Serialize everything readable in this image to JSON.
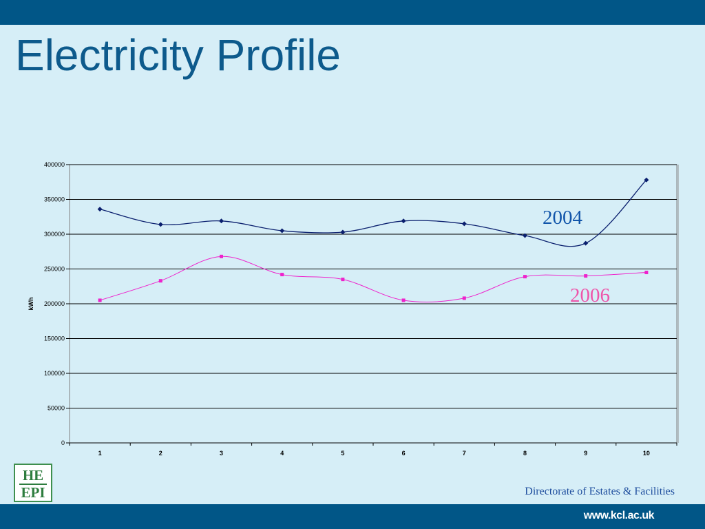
{
  "slide": {
    "title": "Electricity Profile",
    "footer": "Directorate of Estates & Facilities",
    "url": "www.kcl.ac.uk",
    "logo": {
      "line1": "HE",
      "line2": "EPI"
    }
  },
  "colors": {
    "bar": "#015687",
    "background": "#d6eef7",
    "series_2004": "#0a1f6e",
    "series_2006": "#ee22cc",
    "label_2004": "#1155aa",
    "label_2006": "#ee55aa"
  },
  "chart_data": {
    "type": "line",
    "title": "",
    "xlabel": "",
    "ylabel": "kWh",
    "ylim": [
      0,
      400000
    ],
    "yticks": [
      0,
      50000,
      100000,
      150000,
      200000,
      250000,
      300000,
      350000,
      400000
    ],
    "categories": [
      "1",
      "2",
      "3",
      "4",
      "5",
      "6",
      "7",
      "8",
      "9",
      "10"
    ],
    "grid": true,
    "series": [
      {
        "name": "2004",
        "values": [
          336000,
          314000,
          319000,
          305000,
          303000,
          319000,
          315000,
          298000,
          287000,
          378000
        ]
      },
      {
        "name": "2006",
        "values": [
          205000,
          233000,
          268000,
          242000,
          235000,
          205000,
          208000,
          239000,
          240000,
          245000
        ]
      }
    ]
  }
}
